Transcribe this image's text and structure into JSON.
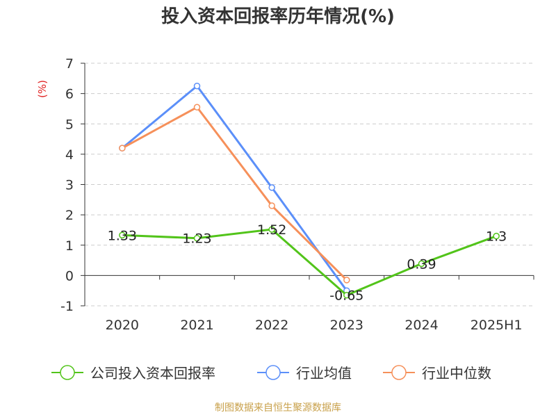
{
  "chart_data": {
    "type": "line",
    "title": "投入资本回报率历年情况(%)",
    "ylabel": "(%)",
    "xlabel": "",
    "categories": [
      "2020",
      "2021",
      "2022",
      "2023",
      "2024",
      "2025H1"
    ],
    "ylim": [
      -1,
      7
    ],
    "yticks": [
      "-1",
      "0",
      "1",
      "2",
      "3",
      "4",
      "5",
      "6",
      "7"
    ],
    "grid": true,
    "legend_position": "bottom",
    "series": [
      {
        "name": "公司投入资本回报率",
        "color": "#52c41a",
        "values": [
          1.33,
          1.23,
          1.52,
          -0.65,
          0.39,
          1.3
        ],
        "labels": [
          "1.33",
          "1.23",
          "1.52",
          "-0.65",
          "0.39",
          "1.3"
        ],
        "show_labels": true
      },
      {
        "name": "行业均值",
        "color": "#5b8ff9",
        "values": [
          4.2,
          6.25,
          2.9,
          -0.5,
          null,
          null
        ],
        "show_labels": false
      },
      {
        "name": "行业中位数",
        "color": "#f6905a",
        "values": [
          4.2,
          5.55,
          2.3,
          -0.15,
          null,
          null
        ],
        "show_labels": false
      }
    ]
  },
  "footer": {
    "source": "制图数据来自恒生聚源数据库"
  }
}
